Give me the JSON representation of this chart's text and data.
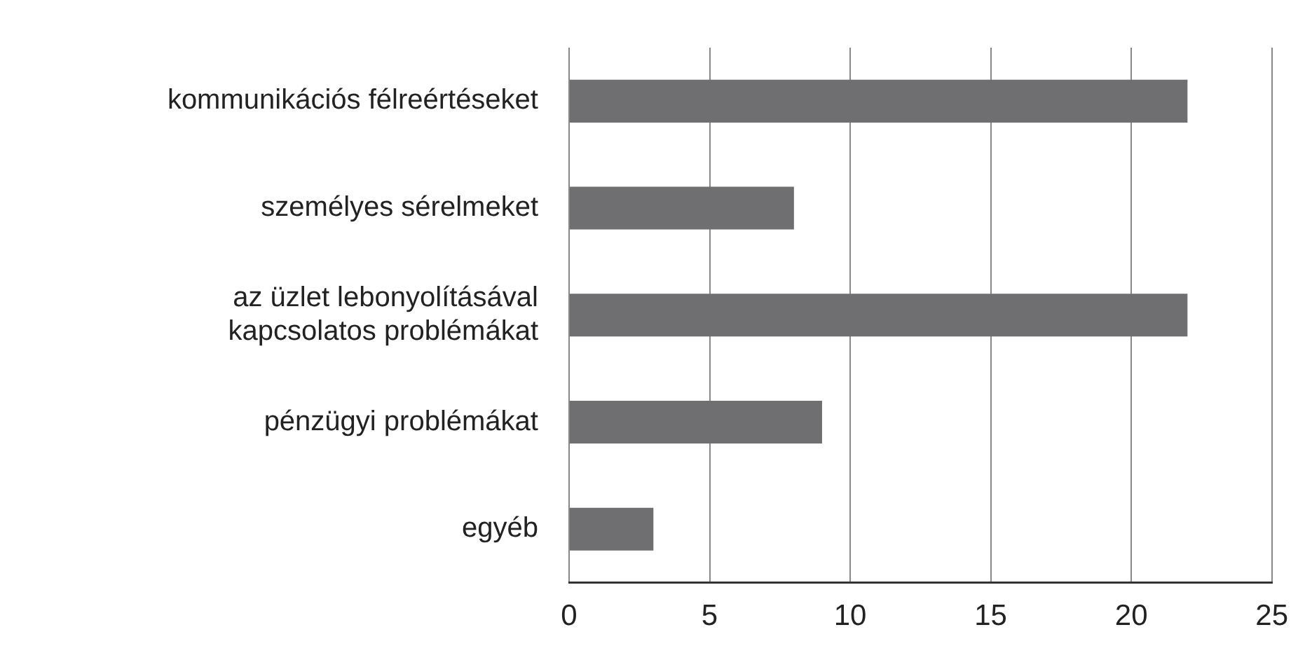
{
  "chart_data": {
    "type": "bar",
    "orientation": "horizontal",
    "categories": [
      "kommunikációs félreértéseket",
      "személyes sérelmeket",
      "az üzlet lebonyolításával kapcsolatos problémákat",
      "pénzügyi problémákat",
      "egyéb"
    ],
    "values": [
      22,
      8,
      22,
      9,
      3
    ],
    "color": "#6f6f71",
    "xlim": [
      0,
      25
    ],
    "xticks": [
      0,
      5,
      10,
      15,
      20,
      25
    ],
    "grid": "x",
    "legend": false
  }
}
